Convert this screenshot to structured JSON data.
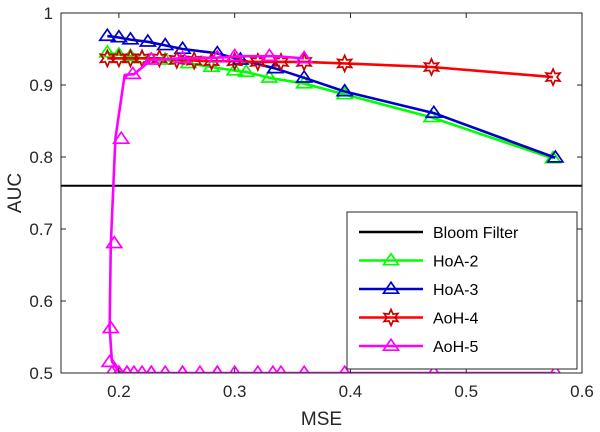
{
  "chart_data": {
    "type": "line",
    "xlabel": "MSE",
    "ylabel": "AUC",
    "xlim": [
      0.15,
      0.6
    ],
    "ylim": [
      0.5,
      1.0
    ],
    "xticks": [
      0.2,
      0.3,
      0.4,
      0.5,
      0.6
    ],
    "yticks": [
      0.5,
      0.6,
      0.7,
      0.8,
      0.9,
      1.0
    ],
    "xtick_labels": [
      "0.2",
      "0.3",
      "0.4",
      "0.5",
      "0.6"
    ],
    "ytick_labels": [
      "0.5",
      "0.6",
      "0.7",
      "0.8",
      "0.9",
      "1"
    ],
    "grid": false,
    "legend_position": "bottom-right",
    "reference_lines": [
      {
        "name": "Bloom Filter",
        "y": 0.76,
        "color": "#000000"
      }
    ],
    "series": [
      {
        "name": "HoA-2",
        "color": "#00ff00",
        "edge_color": "#00ff00",
        "marker": "triangle",
        "x": [
          0.19,
          0.2,
          0.21,
          0.22,
          0.24,
          0.26,
          0.28,
          0.3,
          0.31,
          0.33,
          0.36,
          0.395,
          0.47,
          0.575
        ],
        "y": [
          0.945,
          0.942,
          0.94,
          0.937,
          0.935,
          0.93,
          0.925,
          0.92,
          0.918,
          0.91,
          0.902,
          0.887,
          0.855,
          0.798
        ]
      },
      {
        "name": "HoA-3",
        "color": "#0000cc",
        "edge_color": "#0000cc",
        "marker": "triangle",
        "x": [
          0.19,
          0.2,
          0.21,
          0.225,
          0.24,
          0.255,
          0.285,
          0.305,
          0.335,
          0.36,
          0.395,
          0.472,
          0.577
        ],
        "y": [
          0.968,
          0.966,
          0.963,
          0.96,
          0.955,
          0.95,
          0.944,
          0.935,
          0.923,
          0.91,
          0.891,
          0.861,
          0.799
        ]
      },
      {
        "name": "AoH-4",
        "color": "#ff0000",
        "edge_color": "#cc0000",
        "marker": "hexagram",
        "x": [
          0.19,
          0.2,
          0.21,
          0.22,
          0.235,
          0.25,
          0.265,
          0.28,
          0.3,
          0.32,
          0.34,
          0.36,
          0.395,
          0.47,
          0.575
        ],
        "y": [
          0.937,
          0.937,
          0.937,
          0.937,
          0.937,
          0.935,
          0.934,
          0.933,
          0.933,
          0.932,
          0.932,
          0.932,
          0.93,
          0.925,
          0.911
        ]
      },
      {
        "name": "AoH-5",
        "color": "#ff00ff",
        "edge_color": "#ff00ff",
        "marker": "triangle",
        "x": [
          0.2,
          0.207,
          0.213,
          0.22,
          0.228,
          0.24,
          0.255,
          0.27,
          0.285,
          0.3,
          0.32,
          0.34,
          0.36,
          0.36,
          0.33,
          0.3,
          0.285,
          0.255,
          0.228,
          0.212,
          0.202,
          0.196,
          0.193,
          0.192,
          0.194,
          0.2,
          0.207,
          0.228,
          0.255,
          0.285,
          0.333,
          0.395,
          0.472,
          0.577
        ],
        "y": [
          0.5,
          0.5,
          0.5,
          0.5,
          0.5,
          0.5,
          0.5,
          0.5,
          0.5,
          0.5,
          0.5,
          0.5,
          0.5,
          0.937,
          0.94,
          0.94,
          0.938,
          0.937,
          0.935,
          0.915,
          0.825,
          0.68,
          0.562,
          0.515,
          0.5,
          0.5,
          0.5,
          0.5,
          0.5,
          0.5,
          0.5,
          0.5,
          0.5,
          0.5
        ],
        "x_display": [
          0.36,
          0.335,
          0.305,
          0.285,
          0.255,
          0.228,
          0.213,
          0.205,
          0.197,
          0.193,
          0.192,
          0.194,
          0.2,
          0.207,
          0.228,
          0.255,
          0.285,
          0.333,
          0.395,
          0.472,
          0.577
        ],
        "y_display": [
          0.937,
          0.94,
          0.94,
          0.938,
          0.937,
          0.935,
          0.915,
          0.914,
          0.826,
          0.678,
          0.563,
          0.516,
          0.502,
          0.5,
          0.5,
          0.5,
          0.5,
          0.5,
          0.5,
          0.5,
          0.5
        ]
      }
    ]
  }
}
